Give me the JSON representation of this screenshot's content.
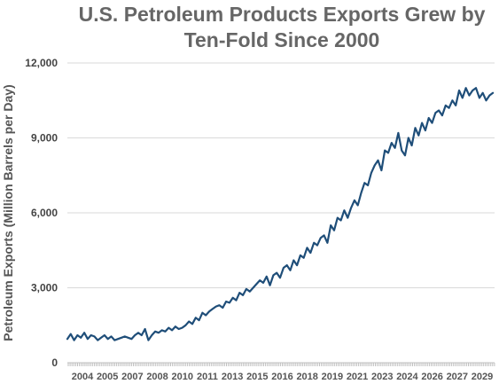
{
  "chart_data": {
    "type": "line",
    "title_lines": [
      "U.S. Petroleum Products Exports Grew by",
      "Ten-Fold Since 2000"
    ],
    "xlabel": "",
    "ylabel": "Petroleum Exports (Million Barrels per Day)",
    "ylim": [
      0,
      12000
    ],
    "yticks": [
      0,
      3000,
      6000,
      9000,
      12000
    ],
    "ytick_labels": [
      "0",
      "3,000",
      "6,000",
      "9,000",
      "12,000"
    ],
    "xlim": [
      2004,
      2029.3
    ],
    "xtick_labels": [
      "2004",
      "2005",
      "2007",
      "2008",
      "2010",
      "2011",
      "2013",
      "2015",
      "2016",
      "2018",
      "2019",
      "2021",
      "2023",
      "2024",
      "2026",
      "2027",
      "2029"
    ],
    "grid": "horizontal",
    "line_color": "#1f4e79",
    "series": [
      {
        "x": [
          2004.0,
          2004.2,
          2004.4,
          2004.6,
          2004.8,
          2005.0,
          2005.2,
          2005.4,
          2005.6,
          2005.8,
          2006.0,
          2006.2,
          2006.4,
          2006.6,
          2006.8,
          2007.0,
          2007.2,
          2007.4,
          2007.6,
          2007.8,
          2008.0,
          2008.2,
          2008.4,
          2008.6,
          2008.8,
          2009.0,
          2009.2,
          2009.4,
          2009.6,
          2009.8,
          2010.0,
          2010.2,
          2010.4,
          2010.6,
          2010.8,
          2011.0,
          2011.2,
          2011.4,
          2011.6,
          2011.8,
          2012.0,
          2012.2,
          2012.4,
          2012.6,
          2012.8,
          2013.0,
          2013.2,
          2013.4,
          2013.6,
          2013.8,
          2014.0,
          2014.2,
          2014.4,
          2014.6,
          2014.8,
          2015.0,
          2015.2,
          2015.4,
          2015.6,
          2015.8,
          2016.0,
          2016.2,
          2016.4,
          2016.6,
          2016.8,
          2017.0,
          2017.2,
          2017.4,
          2017.6,
          2017.8,
          2018.0,
          2018.2,
          2018.4,
          2018.6,
          2018.8,
          2019.0,
          2019.2,
          2019.4,
          2019.6,
          2019.8,
          2020.0,
          2020.2,
          2020.4,
          2020.6,
          2020.8,
          2021.0,
          2021.2,
          2021.4,
          2021.6,
          2021.8,
          2022.0,
          2022.2,
          2022.4,
          2022.6,
          2022.8,
          2023.0,
          2023.2,
          2023.4,
          2023.6,
          2023.8,
          2024.0,
          2024.2,
          2024.4,
          2024.6,
          2024.8,
          2025.0,
          2025.2,
          2025.4,
          2025.6,
          2025.8,
          2026.0,
          2026.2,
          2026.4,
          2026.6,
          2026.8,
          2027.0,
          2027.2,
          2027.4,
          2027.6,
          2027.8,
          2028.0,
          2028.2,
          2028.4,
          2028.6,
          2028.8,
          2029.0,
          2029.2
        ],
        "values": [
          950,
          1150,
          900,
          1100,
          1000,
          1200,
          950,
          1100,
          1050,
          900,
          1000,
          1100,
          950,
          1050,
          900,
          950,
          1000,
          1050,
          1000,
          950,
          1100,
          1200,
          1100,
          1350,
          900,
          1100,
          1250,
          1200,
          1300,
          1250,
          1400,
          1300,
          1450,
          1350,
          1400,
          1500,
          1650,
          1550,
          1800,
          1700,
          2000,
          1900,
          2050,
          2150,
          2250,
          2300,
          2200,
          2450,
          2400,
          2600,
          2500,
          2800,
          2700,
          2950,
          2850,
          3000,
          3150,
          3300,
          3200,
          3450,
          3100,
          3500,
          3600,
          3400,
          3800,
          3900,
          3700,
          4100,
          3900,
          4300,
          4200,
          4600,
          4400,
          4800,
          4700,
          5000,
          5100,
          4800,
          5500,
          5300,
          5800,
          5700,
          6100,
          5800,
          6200,
          6500,
          6300,
          6800,
          7200,
          7100,
          7600,
          7900,
          8100,
          7700,
          8500,
          8400,
          8800,
          8600,
          9200,
          8500,
          8300,
          9000,
          8700,
          9400,
          9100,
          9600,
          9300,
          9800,
          9600,
          10000,
          10100,
          9900,
          10300,
          10200,
          10500,
          10300,
          10900,
          10600,
          11000,
          10700,
          10900,
          11000,
          10600,
          10800,
          10500,
          10700,
          10800
        ]
      }
    ]
  }
}
